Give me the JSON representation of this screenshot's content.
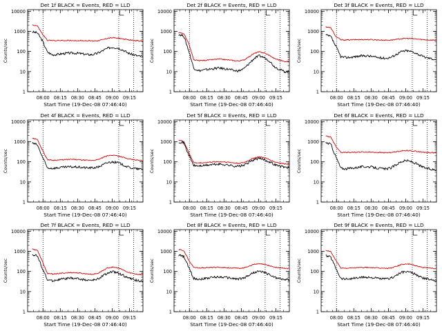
{
  "colors": {
    "events": "#000000",
    "lld": "#d00000",
    "axis": "#000000"
  },
  "chart_data": [
    {
      "type": "line",
      "title": "Det 1f BLACK = Events, RED = LLD",
      "ylabel": "Counts/sec",
      "xlabel": "Start Time (19-Dec-08 07:46:40)",
      "x_ticks": [
        "08:00",
        "08:15",
        "08:30",
        "08:45",
        "09:00",
        "09:15"
      ],
      "y_ticks": [
        "1",
        "10",
        "100",
        "1000",
        "10000"
      ],
      "ylim": [
        1,
        12000
      ],
      "y_scale": "log",
      "series": [
        {
          "values": [
            950,
            850,
            350,
            95,
            68,
            72,
            78,
            82,
            84,
            82,
            76,
            70,
            70,
            82,
            110,
            145,
            165,
            150,
            120,
            85,
            70,
            60,
            56
          ]
        },
        {
          "values": [
            2100,
            1900,
            750,
            360,
            350,
            350,
            350,
            352,
            350,
            348,
            345,
            340,
            335,
            345,
            385,
            455,
            480,
            460,
            420,
            380,
            360,
            340,
            330
          ]
        }
      ]
    },
    {
      "type": "line",
      "title": "Det 2f BLACK = Events, RED = LLD",
      "ylabel": "Counts/sec",
      "xlabel": "Start Time (19-Dec-08 07:46:40)",
      "x_ticks": [
        "08:00",
        "08:15",
        "08:30",
        "08:45",
        "09:00",
        "09:15"
      ],
      "y_ticks": [
        "1",
        "10",
        "100",
        "1000",
        "10000"
      ],
      "ylim": [
        1,
        12000
      ],
      "y_scale": "log",
      "series": [
        {
          "values": [
            700,
            600,
            110,
            15,
            11,
            12,
            13,
            14,
            15,
            14,
            13,
            11,
            11,
            14,
            25,
            45,
            60,
            50,
            35,
            18,
            13,
            10,
            10
          ]
        },
        {
          "values": [
            850,
            800,
            250,
            38,
            35,
            36,
            38,
            40,
            42,
            40,
            38,
            35,
            34,
            38,
            55,
            80,
            95,
            85,
            65,
            45,
            38,
            32,
            32
          ]
        }
      ]
    },
    {
      "type": "line",
      "title": "Det 3f BLACK = Events, RED = LLD",
      "ylabel": "Counts/sec",
      "xlabel": "Start Time (19-Dec-08 07:46:40)",
      "x_ticks": [
        "08:00",
        "08:15",
        "08:30",
        "08:45",
        "09:00",
        "09:15"
      ],
      "y_ticks": [
        "1",
        "10",
        "100",
        "1000",
        "10000"
      ],
      "ylim": [
        1,
        12000
      ],
      "y_scale": "log",
      "series": [
        {
          "values": [
            650,
            550,
            180,
            55,
            50,
            52,
            56,
            60,
            62,
            58,
            52,
            48,
            46,
            52,
            72,
            98,
            110,
            100,
            82,
            60,
            50,
            44,
            40
          ]
        },
        {
          "values": [
            1700,
            1500,
            560,
            380,
            375,
            380,
            385,
            390,
            392,
            388,
            380,
            372,
            365,
            372,
            395,
            430,
            445,
            435,
            420,
            395,
            380,
            370,
            365
          ]
        }
      ]
    },
    {
      "type": "line",
      "title": "Det 4f BLACK = Events, RED = LLD",
      "ylabel": "Counts/sec",
      "xlabel": "Start Time (19-Dec-08 07:46:40)",
      "x_ticks": [
        "08:00",
        "08:15",
        "08:30",
        "08:45",
        "09:00",
        "09:15"
      ],
      "y_ticks": [
        "1",
        "10",
        "100",
        "1000",
        "10000"
      ],
      "ylim": [
        1,
        12000
      ],
      "y_scale": "log",
      "series": [
        {
          "values": [
            850,
            700,
            180,
            50,
            48,
            50,
            53,
            55,
            56,
            55,
            52,
            50,
            50,
            54,
            70,
            92,
            100,
            90,
            72,
            55,
            48,
            44,
            42
          ]
        },
        {
          "values": [
            1500,
            1300,
            400,
            130,
            120,
            122,
            126,
            130,
            132,
            128,
            122,
            118,
            118,
            126,
            160,
            200,
            215,
            200,
            170,
            140,
            128,
            120,
            115
          ]
        }
      ]
    },
    {
      "type": "line",
      "title": "Det 5f BLACK = Events, RED = LLD",
      "ylabel": "Counts/sec",
      "xlabel": "Start Time (19-Dec-08 07:46:40)",
      "x_ticks": [
        "08:00",
        "08:15",
        "08:30",
        "08:45",
        "09:00",
        "09:15"
      ],
      "y_ticks": [
        "1",
        "10",
        "100",
        "1000",
        "10000"
      ],
      "ylim": [
        1,
        12000
      ],
      "y_scale": "log",
      "series": [
        {
          "values": [
            1000,
            900,
            220,
            65,
            62,
            65,
            70,
            74,
            76,
            74,
            68,
            62,
            60,
            68,
            95,
            130,
            145,
            130,
            100,
            75,
            62,
            55,
            52
          ]
        },
        {
          "values": [
            1200,
            1050,
            300,
            90,
            88,
            90,
            95,
            100,
            102,
            100,
            95,
            88,
            85,
            92,
            120,
            160,
            175,
            160,
            130,
            100,
            88,
            80,
            78
          ]
        }
      ]
    },
    {
      "type": "line",
      "title": "Det 6f BLACK = Events, RED = LLD",
      "ylabel": "Counts/sec",
      "xlabel": "Start Time (19-Dec-08 07:46:40)",
      "x_ticks": [
        "08:00",
        "08:15",
        "08:30",
        "08:45",
        "09:00",
        "09:15"
      ],
      "y_ticks": [
        "1",
        "10",
        "100",
        "1000",
        "10000"
      ],
      "ylim": [
        1,
        12000
      ],
      "y_scale": "log",
      "series": [
        {
          "values": [
            900,
            750,
            180,
            48,
            45,
            48,
            52,
            56,
            58,
            55,
            50,
            46,
            44,
            50,
            72,
            102,
            115,
            102,
            80,
            58,
            48,
            42,
            40
          ]
        },
        {
          "values": [
            1900,
            1700,
            600,
            300,
            295,
            298,
            302,
            306,
            308,
            304,
            298,
            290,
            285,
            292,
            315,
            350,
            365,
            352,
            330,
            305,
            295,
            285,
            282
          ]
        }
      ]
    },
    {
      "type": "line",
      "title": "Det 7f BLACK = Events, RED = LLD",
      "ylabel": "Counts/sec",
      "xlabel": "Start Time (19-Dec-08 07:46:40)",
      "x_ticks": [
        "08:00",
        "08:15",
        "08:30",
        "08:45",
        "09:00",
        "09:15"
      ],
      "y_ticks": [
        "1",
        "10",
        "100",
        "1000",
        "10000"
      ],
      "ylim": [
        1,
        12000
      ],
      "y_scale": "log",
      "series": [
        {
          "values": [
            700,
            600,
            150,
            38,
            35,
            38,
            42,
            45,
            46,
            44,
            40,
            37,
            36,
            42,
            60,
            85,
            95,
            85,
            65,
            48,
            40,
            35,
            34
          ]
        },
        {
          "values": [
            1300,
            1150,
            320,
            80,
            75,
            78,
            82,
            86,
            88,
            85,
            80,
            75,
            72,
            80,
            110,
            150,
            165,
            150,
            120,
            90,
            80,
            72,
            70
          ]
        }
      ]
    },
    {
      "type": "line",
      "title": "Det 8f BLACK = Events, RED = LLD",
      "ylabel": "Counts/sec",
      "xlabel": "Start Time (19-Dec-08 07:46:40)",
      "x_ticks": [
        "08:00",
        "08:15",
        "08:30",
        "08:45",
        "09:00",
        "09:15"
      ],
      "y_ticks": [
        "1",
        "10",
        "100",
        "1000",
        "10000"
      ],
      "ylim": [
        1,
        12000
      ],
      "y_scale": "log",
      "series": [
        {
          "values": [
            650,
            550,
            160,
            45,
            42,
            44,
            48,
            52,
            54,
            52,
            48,
            44,
            42,
            48,
            66,
            90,
            100,
            90,
            70,
            52,
            44,
            40,
            38
          ]
        },
        {
          "values": [
            1250,
            1100,
            380,
            160,
            150,
            152,
            156,
            160,
            162,
            158,
            152,
            146,
            144,
            152,
            185,
            225,
            240,
            225,
            195,
            165,
            152,
            145,
            140
          ]
        }
      ]
    },
    {
      "type": "line",
      "title": "Det 9f BLACK = Events, RED = LLD",
      "ylabel": "Counts/sec",
      "xlabel": "Start Time (19-Dec-08 07:46:40)",
      "x_ticks": [
        "08:00",
        "08:15",
        "08:30",
        "08:45",
        "09:00",
        "09:15"
      ],
      "y_ticks": [
        "1",
        "10",
        "100",
        "1000",
        "10000"
      ],
      "ylim": [
        1,
        12000
      ],
      "y_scale": "log",
      "series": [
        {
          "values": [
            600,
            520,
            150,
            45,
            42,
            44,
            47,
            50,
            52,
            50,
            46,
            43,
            42,
            47,
            64,
            88,
            98,
            88,
            68,
            50,
            43,
            39,
            37
          ]
        },
        {
          "values": [
            1100,
            980,
            360,
            150,
            146,
            148,
            152,
            156,
            158,
            155,
            150,
            145,
            142,
            150,
            180,
            220,
            235,
            220,
            192,
            162,
            150,
            145,
            140
          ]
        }
      ]
    }
  ]
}
